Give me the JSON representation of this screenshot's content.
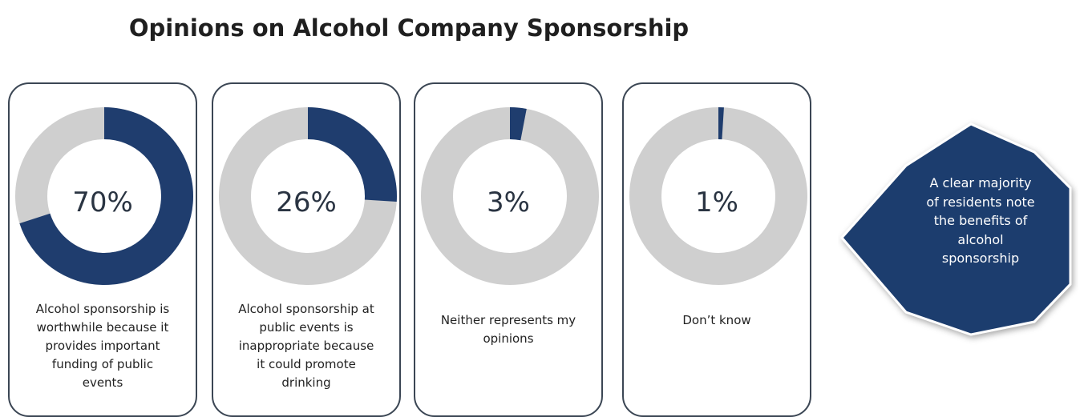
{
  "title": "Opinions on Alcohol Company Sponsorship",
  "colors": {
    "filled": "#1f3d6e",
    "empty": "#cfcfcf",
    "border": "#3b4654",
    "callout": "#1f3d6e"
  },
  "chart_data": {
    "type": "pie",
    "style": "donut",
    "unit": "%",
    "categories": [
      "Alcohol sponsorship is worthwhile because it provides important funding of public events",
      "Alcohol sponsorship at public events is inappropriate because it could promote drinking",
      "Neither represents my opinions",
      "Don't know"
    ],
    "values": [
      70,
      26,
      3,
      1
    ]
  },
  "cards": [
    {
      "value": 70,
      "label": "70%",
      "caption_lines": [
        "Alcohol sponsorship is",
        "worthwhile because it",
        "provides important",
        "funding of public",
        "events"
      ]
    },
    {
      "value": 26,
      "label": "26%",
      "caption_lines": [
        "Alcohol sponsorship at",
        "public events is",
        "inappropriate because",
        "it could promote",
        "drinking"
      ]
    },
    {
      "value": 3,
      "label": "3%",
      "caption_lines": [
        "Neither represents my",
        "opinions"
      ]
    },
    {
      "value": 1,
      "label": "1%",
      "caption_lines": [
        "Don’t know"
      ]
    }
  ],
  "callout": {
    "lines": [
      "A clear majority",
      "of residents note",
      "the benefits of",
      "alcohol",
      "sponsorship"
    ]
  }
}
